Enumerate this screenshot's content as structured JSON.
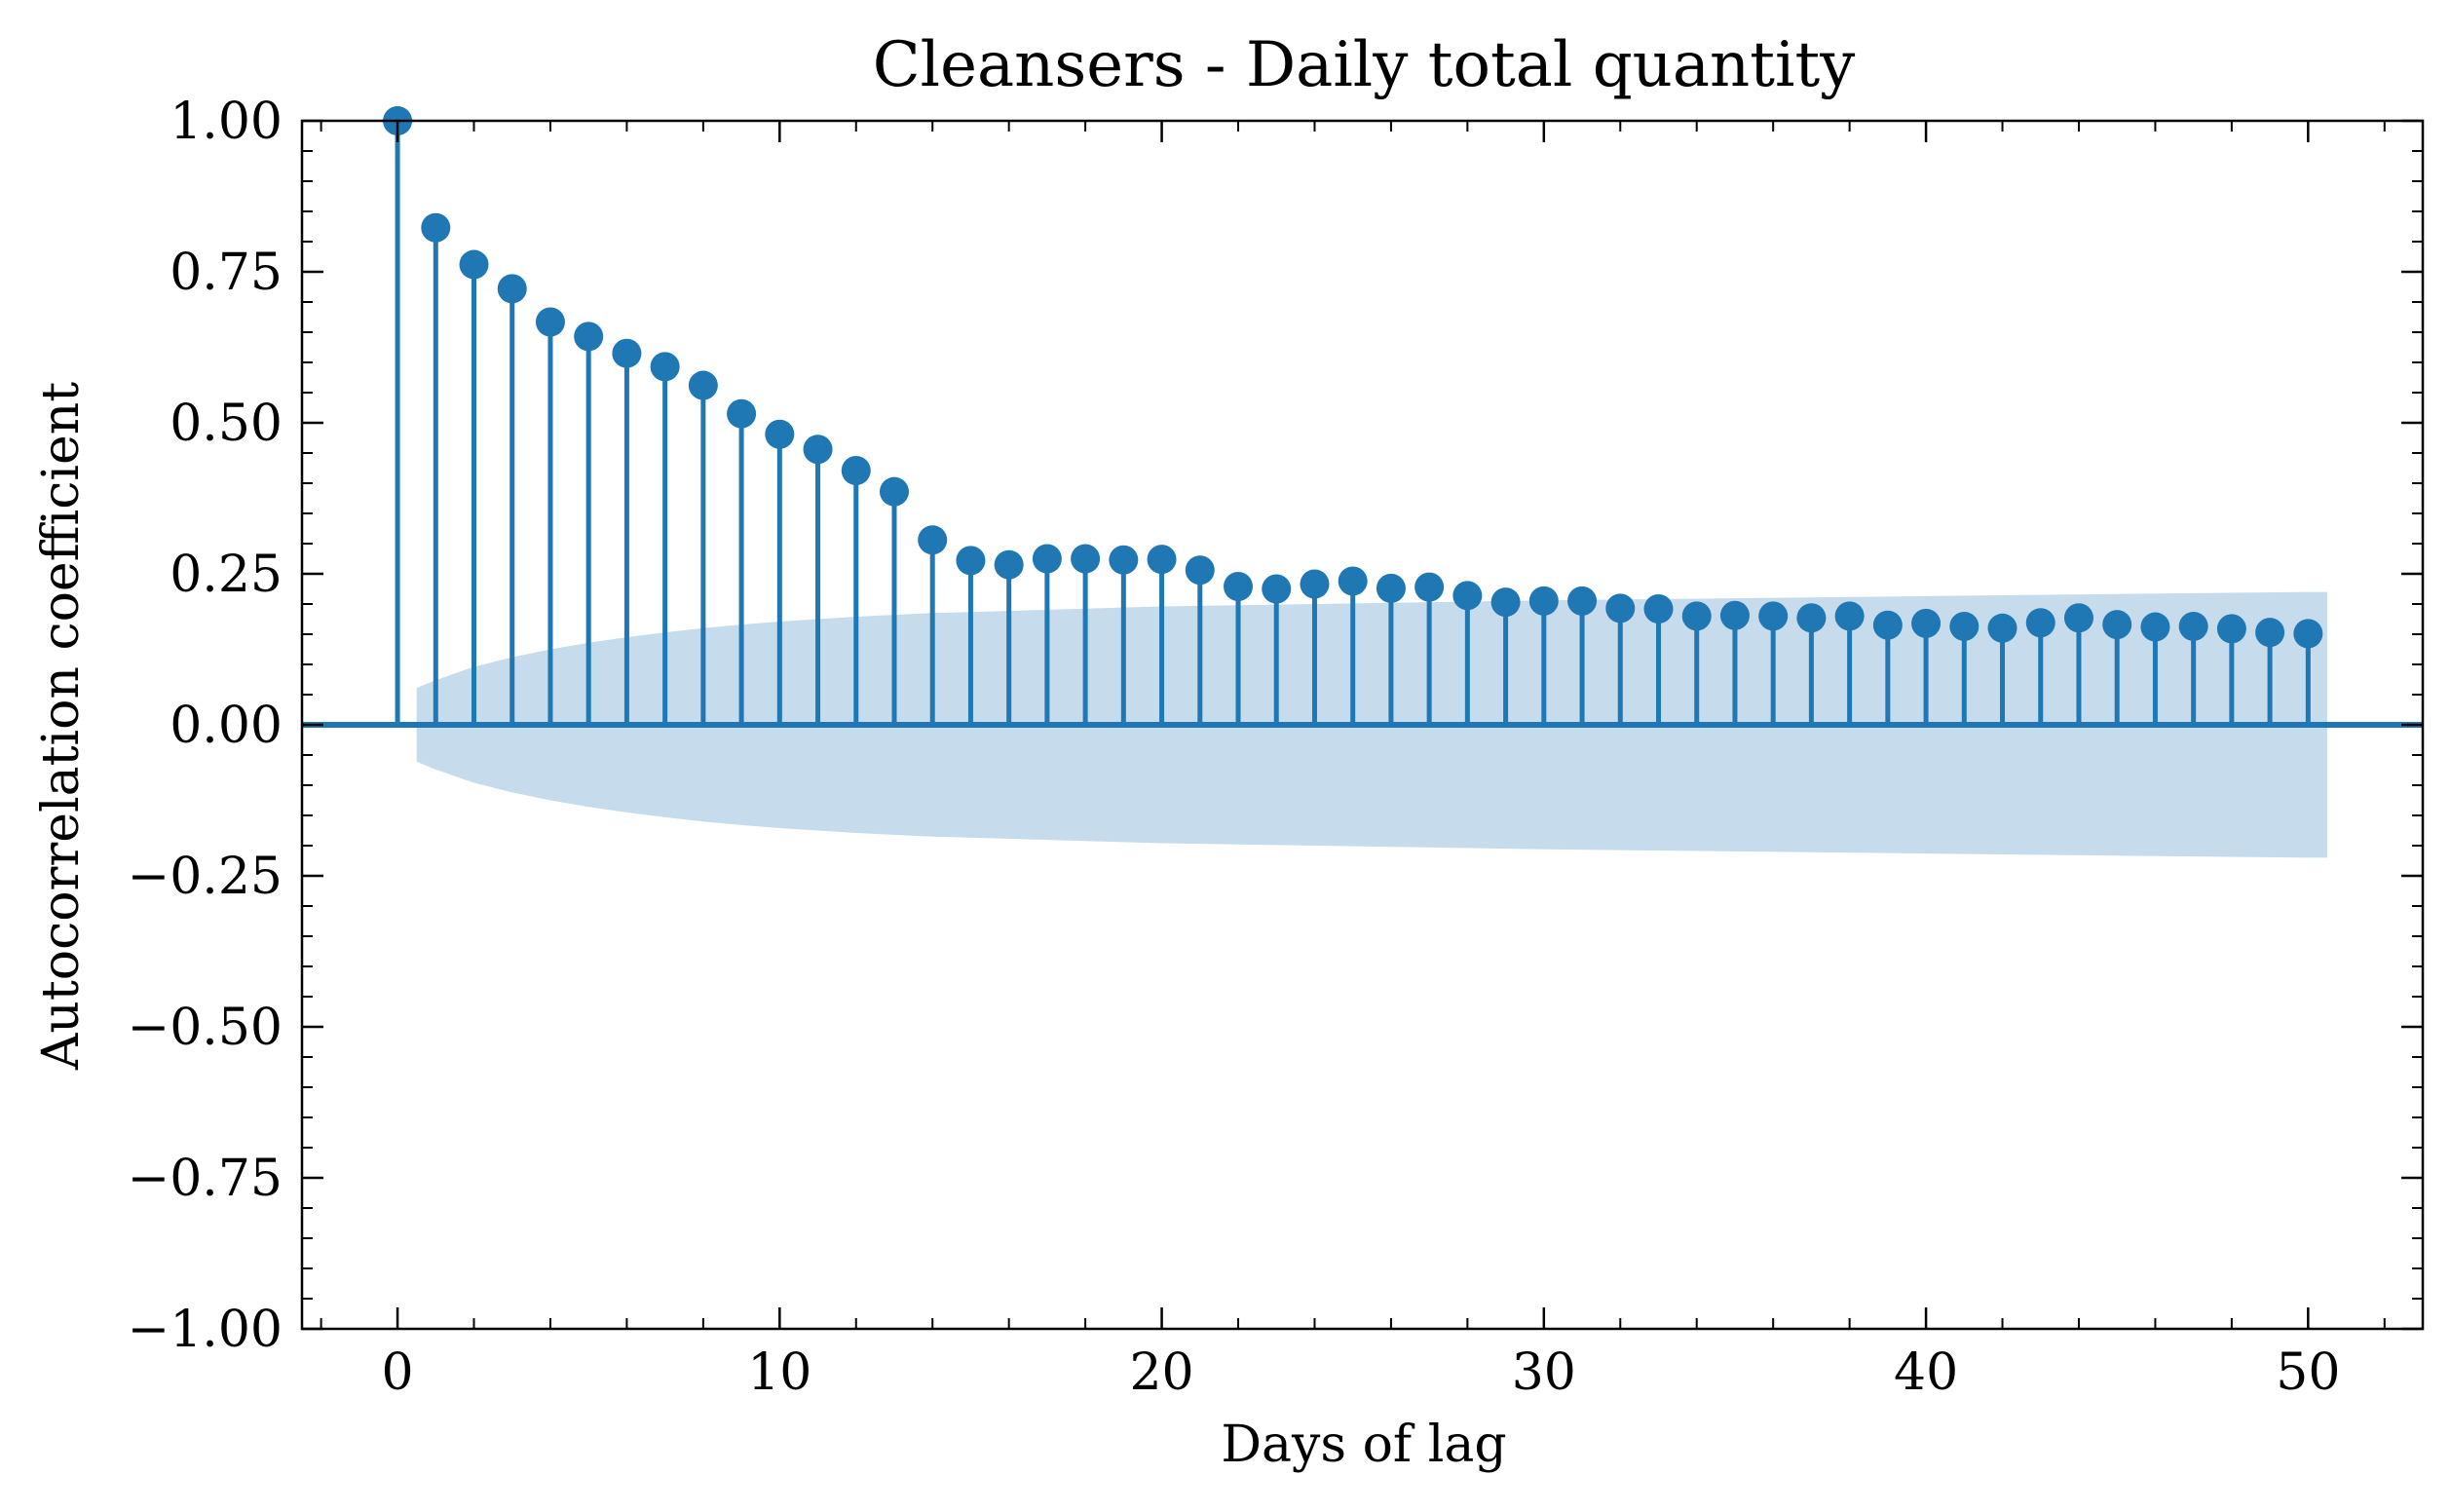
{
  "chart_data": {
    "type": "stem",
    "title": "Cleansers - Daily total quantity",
    "xlabel": "Days of lag",
    "ylabel": "Autocorrelation coefficient",
    "xlim": [
      -2.5,
      53
    ],
    "ylim": [
      -1.0,
      1.0
    ],
    "x_ticks": [
      0,
      10,
      20,
      30,
      40,
      50
    ],
    "x_tick_labels": [
      "0",
      "10",
      "20",
      "30",
      "40",
      "50"
    ],
    "y_ticks": [
      1.0,
      0.75,
      0.5,
      0.25,
      0.0,
      -0.25,
      -0.5,
      -0.75,
      -1.0
    ],
    "y_tick_labels": [
      "1.00",
      "0.75",
      "0.50",
      "0.25",
      "0.00",
      "−0.25",
      "−0.50",
      "−0.75",
      "−1.00"
    ],
    "grid": false,
    "series": [
      {
        "lags": [
          0,
          1,
          2,
          3,
          4,
          5,
          6,
          7,
          8,
          9,
          10,
          11,
          12,
          13,
          14,
          15,
          16,
          17,
          18,
          19,
          20,
          21,
          22,
          23,
          24,
          25,
          26,
          27,
          28,
          29,
          30,
          31,
          32,
          33,
          34,
          35,
          36,
          37,
          38,
          39,
          40,
          41,
          42,
          43,
          44,
          45,
          46,
          47,
          48,
          49,
          50
        ],
        "values": [
          1.0,
          0.823,
          0.762,
          0.722,
          0.667,
          0.643,
          0.615,
          0.593,
          0.562,
          0.515,
          0.481,
          0.456,
          0.421,
          0.386,
          0.306,
          0.272,
          0.265,
          0.275,
          0.275,
          0.273,
          0.274,
          0.256,
          0.229,
          0.225,
          0.233,
          0.238,
          0.226,
          0.228,
          0.214,
          0.203,
          0.205,
          0.205,
          0.193,
          0.192,
          0.18,
          0.181,
          0.18,
          0.177,
          0.18,
          0.165,
          0.168,
          0.163,
          0.16,
          0.169,
          0.177,
          0.166,
          0.162,
          0.163,
          0.159,
          0.153,
          0.151
        ]
      }
    ],
    "confidence_band": {
      "x": [
        0.5,
        1,
        2,
        3,
        4,
        5,
        6,
        7,
        8,
        9,
        10,
        12,
        14,
        20,
        30,
        40,
        50,
        50.5
      ],
      "upper": [
        0.061,
        0.074,
        0.096,
        0.112,
        0.125,
        0.136,
        0.145,
        0.153,
        0.16,
        0.166,
        0.171,
        0.179,
        0.185,
        0.196,
        0.206,
        0.213,
        0.22,
        0.22
      ]
    },
    "colors": {
      "stem": "#1f77b4",
      "band": "#c6dcec",
      "baseline": "#1f77b4"
    }
  }
}
